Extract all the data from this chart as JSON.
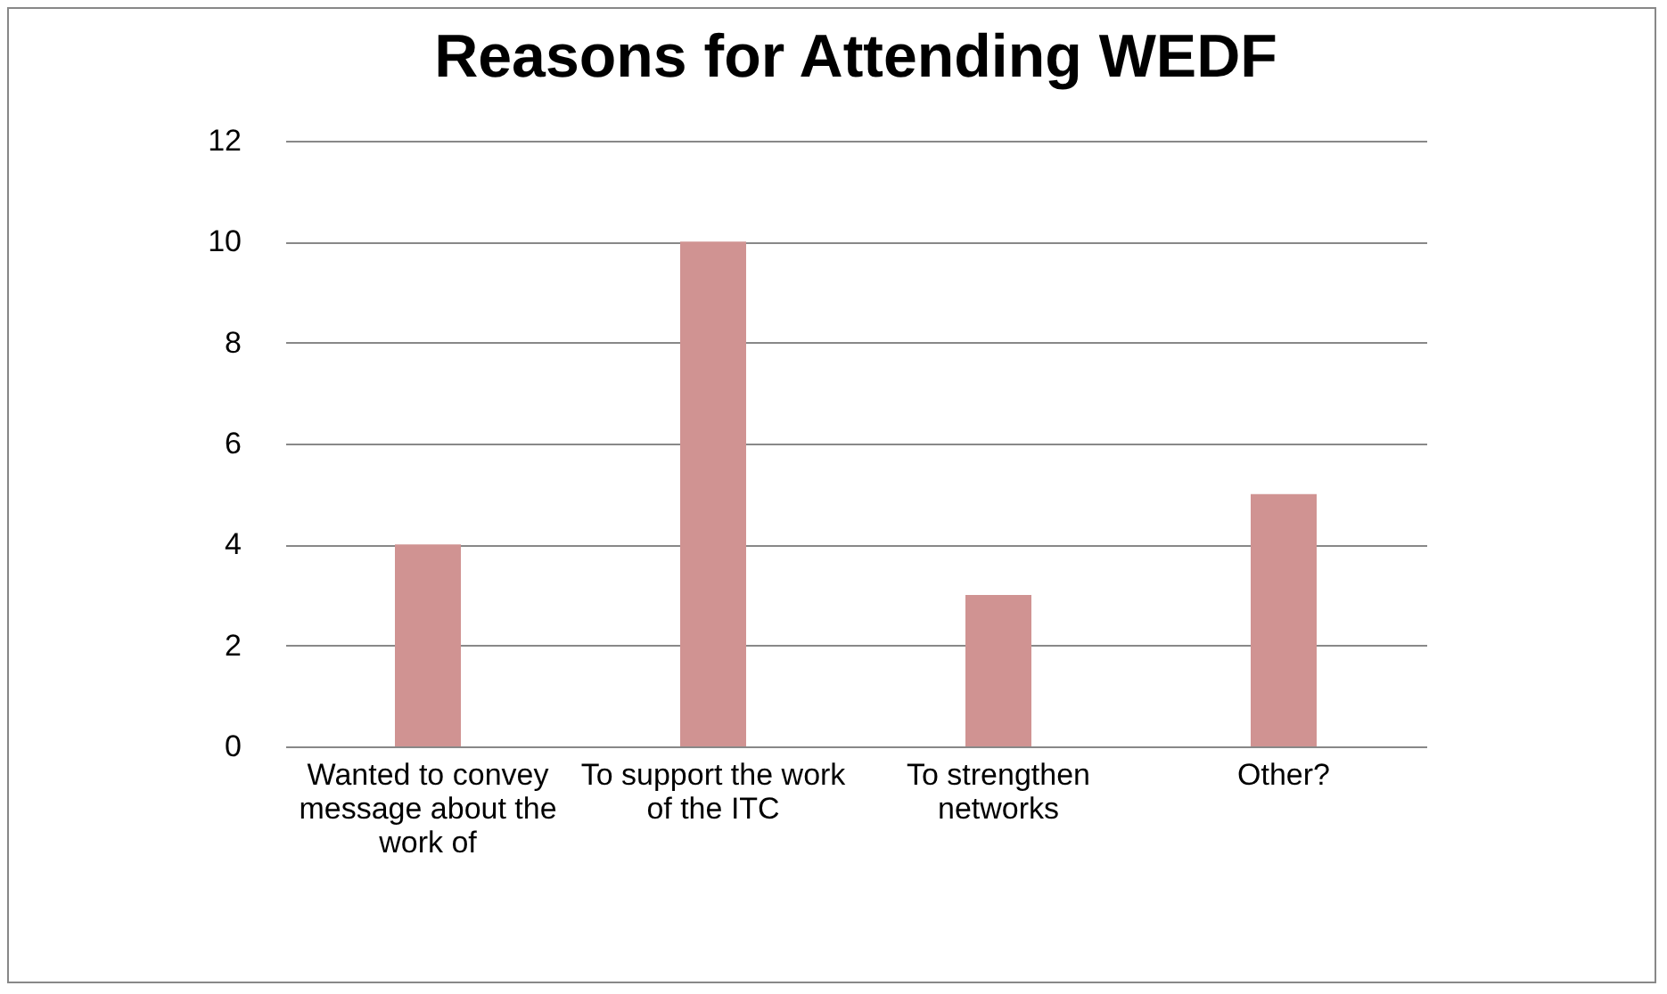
{
  "chart_data": {
    "type": "bar",
    "title": "Reasons for Attending WEDF",
    "categories": [
      "Wanted to convey message about the work of",
      "To support the work of the ITC",
      "To strengthen networks",
      "Other?"
    ],
    "values": [
      4,
      10,
      3,
      5
    ],
    "color": "#d09392",
    "ylim": [
      0,
      12
    ],
    "yticks": [
      0,
      2,
      4,
      6,
      8,
      10,
      12
    ],
    "grid": "y"
  }
}
